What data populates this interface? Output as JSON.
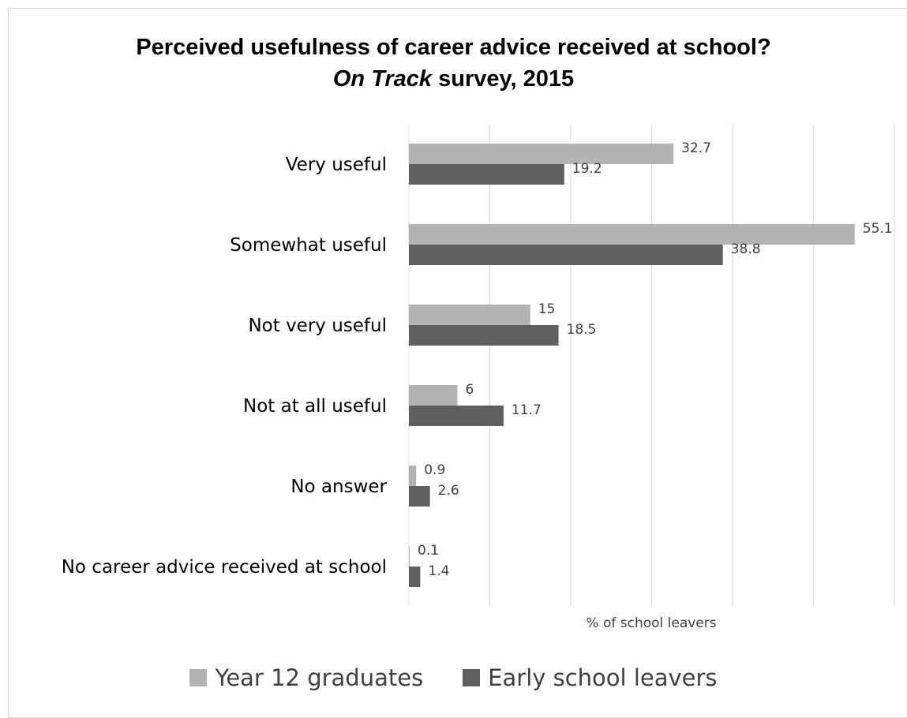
{
  "chart_data": {
    "type": "bar",
    "orientation": "horizontal",
    "title_line1": "Perceived usefulness of career advice received at school?",
    "title_line2_italic": "On Track",
    "title_line2_rest": " survey, 2015",
    "xlabel": "% of school leavers",
    "xlim": [
      0,
      60
    ],
    "grid": true,
    "legend_position": "bottom",
    "categories": [
      "Very useful",
      "Somewhat useful",
      "Not very useful",
      "Not at all useful",
      "No answer",
      "No career advice received at school"
    ],
    "series": [
      {
        "name": "Year 12 graduates",
        "color": "#b3b3b3",
        "values": [
          32.7,
          55.1,
          15,
          6,
          0.9,
          0.1
        ],
        "labels": [
          "32.7",
          "55.1",
          "15",
          "6",
          "0.9",
          "0.1"
        ]
      },
      {
        "name": "Early school leavers",
        "color": "#5f5f5f",
        "values": [
          19.2,
          38.8,
          18.5,
          11.7,
          2.6,
          1.4
        ],
        "labels": [
          "19.2",
          "38.8",
          "18.5",
          "11.7",
          "2.6",
          "1.4"
        ]
      }
    ]
  }
}
